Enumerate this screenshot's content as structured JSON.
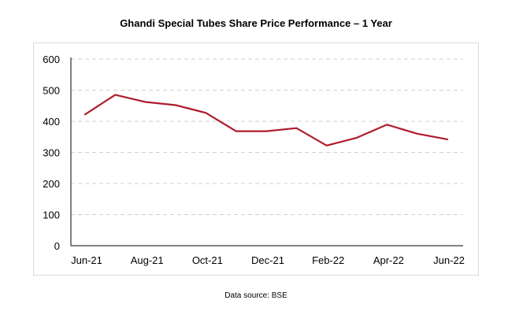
{
  "chart_data": {
    "type": "line",
    "title": "Ghandi Special Tubes Share Price Performance – 1 Year",
    "xlabel": "",
    "ylabel": "",
    "x_tick_labels": [
      "Jun-21",
      "Aug-21",
      "Oct-21",
      "Dec-21",
      "Feb-22",
      "Apr-22",
      "Jun-22"
    ],
    "y_tick_labels": [
      "0",
      "100",
      "200",
      "300",
      "400",
      "500",
      "600"
    ],
    "ylim": [
      0,
      600
    ],
    "grid": "horizontal dashed",
    "legend": "none",
    "series": [
      {
        "color": "#b01c2e",
        "values": [
          422,
          485,
          462,
          452,
          427,
          368,
          368,
          378,
          322,
          347,
          389,
          360,
          342
        ]
      }
    ]
  },
  "footer": {
    "source": "Data source: BSE"
  }
}
